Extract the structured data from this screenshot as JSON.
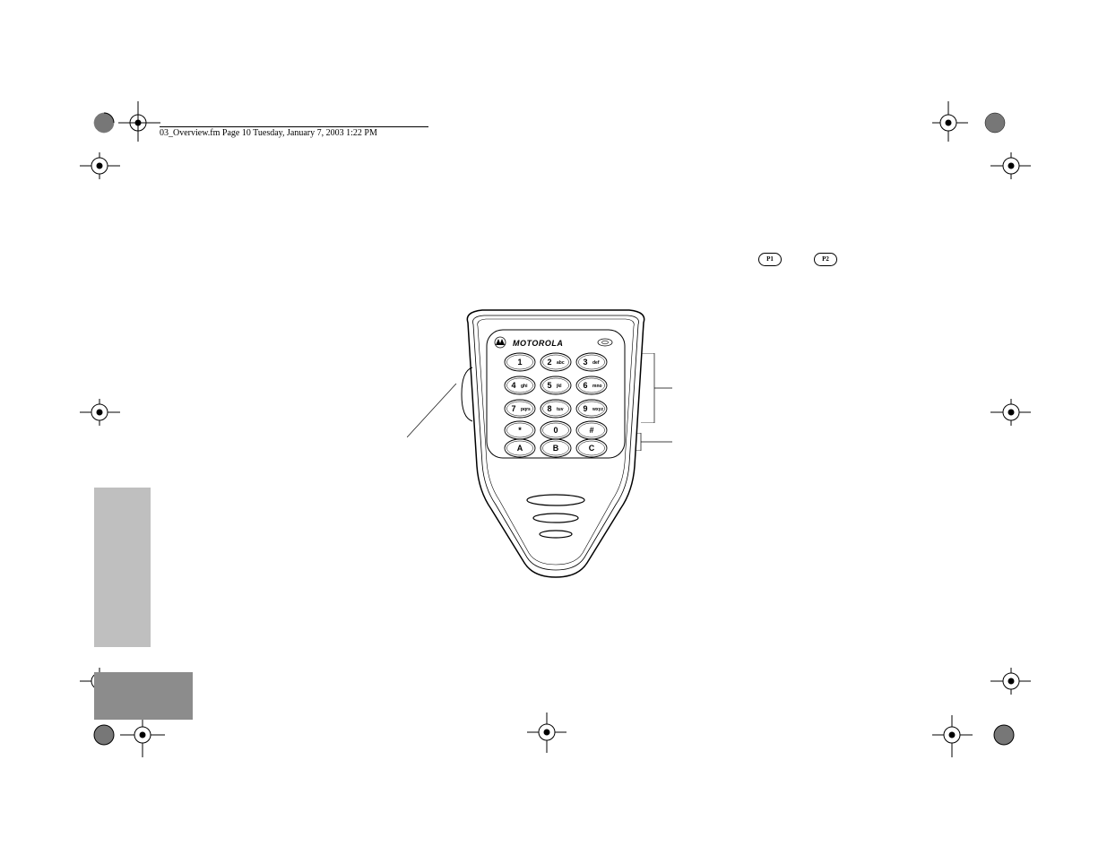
{
  "header": {
    "text": "03_Overview.fm  Page 10  Tuesday, January 7, 2003  1:22 PM"
  },
  "buttons": {
    "p1": "P1",
    "p2": "P2"
  },
  "mic": {
    "brand": "MOTOROLA",
    "keys": [
      {
        "main": "1",
        "sub": ""
      },
      {
        "main": "2",
        "sub": "abc"
      },
      {
        "main": "3",
        "sub": "def"
      },
      {
        "main": "4",
        "sub": "ghi"
      },
      {
        "main": "5",
        "sub": "jkl"
      },
      {
        "main": "6",
        "sub": "mno"
      },
      {
        "main": "7",
        "sub": "pqrs"
      },
      {
        "main": "8",
        "sub": "tuv"
      },
      {
        "main": "9",
        "sub": "wxyz"
      },
      {
        "main": "*",
        "sub": ""
      },
      {
        "main": "0",
        "sub": ""
      },
      {
        "main": "#",
        "sub": ""
      },
      {
        "main": "A",
        "sub": ""
      },
      {
        "main": "B",
        "sub": ""
      },
      {
        "main": "C",
        "sub": ""
      }
    ]
  },
  "style": {
    "crop_mark_color": "#000000",
    "crop_fill_pattern": "#777777"
  }
}
